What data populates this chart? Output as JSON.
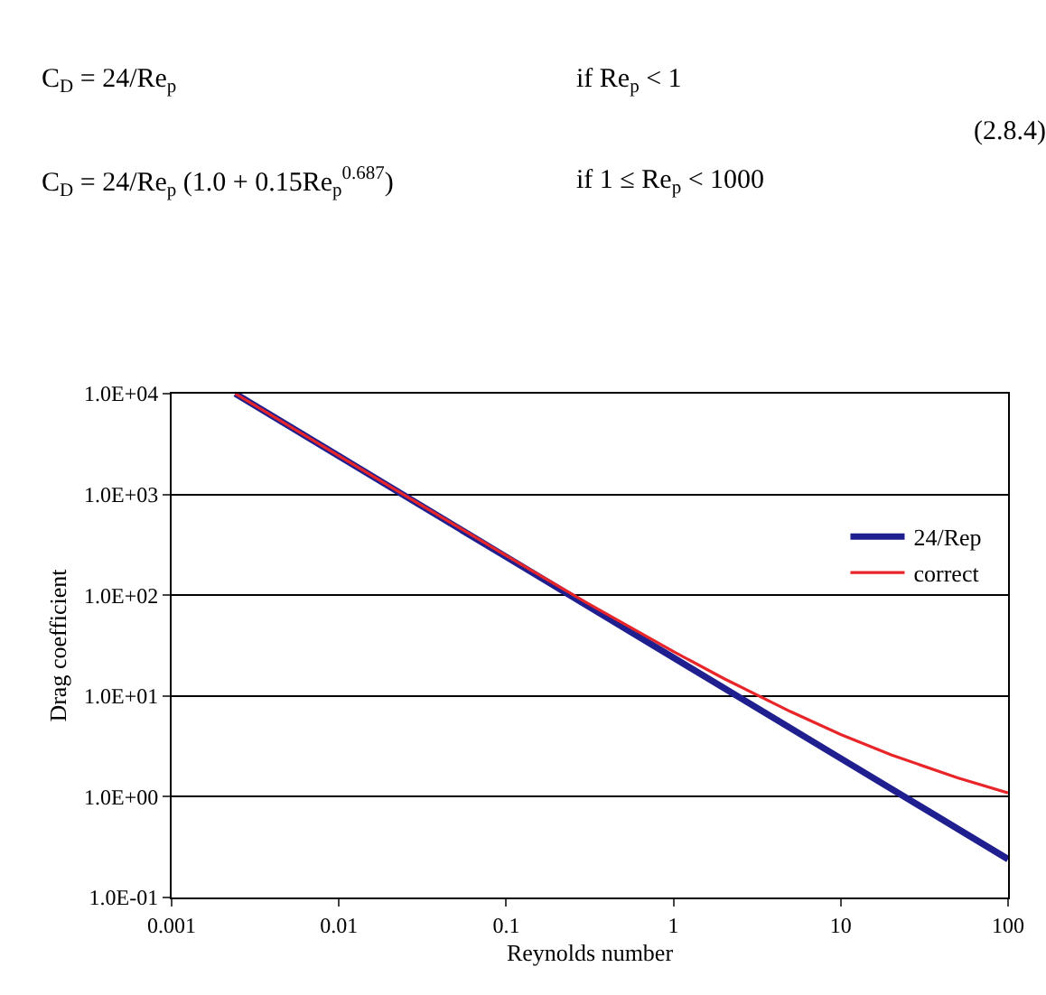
{
  "chart_data": {
    "type": "line",
    "xlabel": "Reynolds number",
    "ylabel": "Drag coefficient",
    "annotations": [
      "C$_{D}$ = 24/Re$_{p}$",
      "if Re$_{p}$ < 1",
      "C$_{D}$ = 24/Re$_{p}$ (1.0 + 0.15Re$_{p}$$^{0.687}$)",
      "if 1 ≤ Re$_{p}$ < 1000",
      "(2.8.4)"
    ],
    "log": "xy",
    "grid": "y",
    "legend": "top right",
    "xlim": [
      0.001,
      100
    ],
    "xticks": [
      0.001,
      0.01,
      0.1,
      1,
      10,
      100
    ],
    "ylim": [
      0.1,
      10000
    ],
    "yticks": [
      {
        "value": 0.1,
        "label": "1.0E-01"
      },
      {
        "value": 1,
        "label": "1.0E+00"
      },
      {
        "value": 10,
        "label": "1.0E+01"
      },
      {
        "value": 100,
        "label": "1.0E+02"
      },
      {
        "value": 1000,
        "label": "1.0E+03"
      },
      {
        "value": 10000,
        "label": "1.0E+04"
      }
    ],
    "series": [
      {
        "name": "24/Rep",
        "color": "#1f1f8f",
        "x": [
          0.0024,
          0.01,
          0.1,
          1,
          10,
          100
        ],
        "values": [
          10000,
          2400,
          240,
          24,
          2.4,
          0.24
        ]
      },
      {
        "name": "correct",
        "color": "#e8262a",
        "x": [
          0.0024,
          0.01,
          0.03,
          0.1,
          0.3,
          1,
          2,
          5,
          10,
          20,
          50,
          100
        ],
        "values": [
          10000,
          2415,
          811,
          247,
          85,
          27.6,
          14.9,
          7.0,
          4.15,
          2.6,
          1.54,
          1.09
        ]
      }
    ]
  }
}
